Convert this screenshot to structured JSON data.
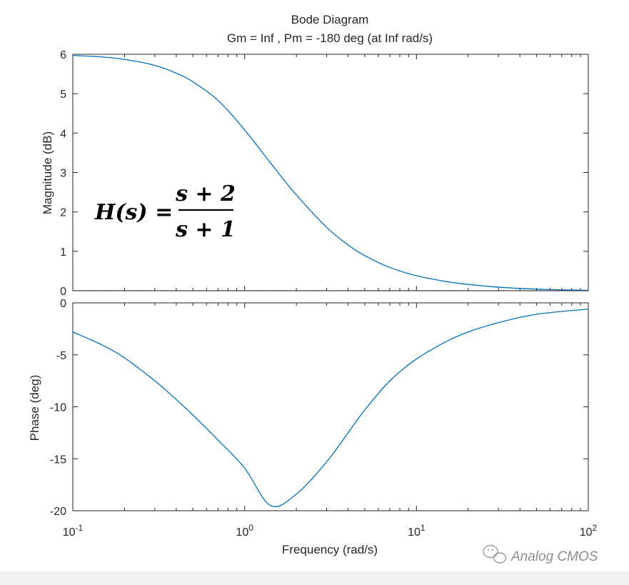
{
  "chart_data": {
    "type": "line",
    "title": "Bode Diagram",
    "subtitle": "Gm = Inf ,  Pm = -180 deg (at Inf rad/s)",
    "xlabel": "Frequency  (rad/s)",
    "xscale": "log",
    "xlim": [
      0.1,
      100
    ],
    "x_ticks": [
      {
        "base": "10",
        "exp": "-1"
      },
      {
        "base": "10",
        "exp": "0"
      },
      {
        "base": "10",
        "exp": "1"
      },
      {
        "base": "10",
        "exp": "2"
      }
    ],
    "grid": false,
    "line_color": "#0072bd",
    "formula": {
      "lhs": "H(s) =",
      "num": "s + 2",
      "den": "s + 1"
    },
    "panels": [
      {
        "ylabel": "Magnitude (dB)",
        "ylim": [
          0,
          6
        ],
        "yticks": [
          "0",
          "1",
          "2",
          "3",
          "4",
          "5",
          "6"
        ],
        "x": [
          0.1,
          0.15,
          0.2,
          0.3,
          0.4,
          0.5,
          0.7,
          1.0,
          1.5,
          2.0,
          3.0,
          4.0,
          5.0,
          7.0,
          10,
          15,
          20,
          30,
          50,
          100
        ],
        "y": [
          5.97,
          5.93,
          5.87,
          5.72,
          5.52,
          5.3,
          4.83,
          4.08,
          3.1,
          2.43,
          1.61,
          1.16,
          0.89,
          0.59,
          0.38,
          0.23,
          0.16,
          0.09,
          0.04,
          0.01
        ]
      },
      {
        "ylabel": "Phase (deg)",
        "ylim": [
          -20,
          0
        ],
        "yticks": [
          "-20",
          "-15",
          "-10",
          "-5",
          "0"
        ],
        "x": [
          0.1,
          0.15,
          0.2,
          0.3,
          0.4,
          0.5,
          0.7,
          1.0,
          1.414,
          2.0,
          3.0,
          4.0,
          5.0,
          7.0,
          10,
          15,
          20,
          30,
          50,
          100
        ],
        "y": [
          -2.8,
          -4.1,
          -5.3,
          -7.5,
          -9.3,
          -10.8,
          -13.2,
          -15.9,
          -19.5,
          -18.4,
          -15.3,
          -12.5,
          -10.3,
          -7.5,
          -5.4,
          -3.7,
          -2.8,
          -1.9,
          -1.1,
          -0.6
        ]
      }
    ]
  },
  "watermark": "Analog CMOS"
}
